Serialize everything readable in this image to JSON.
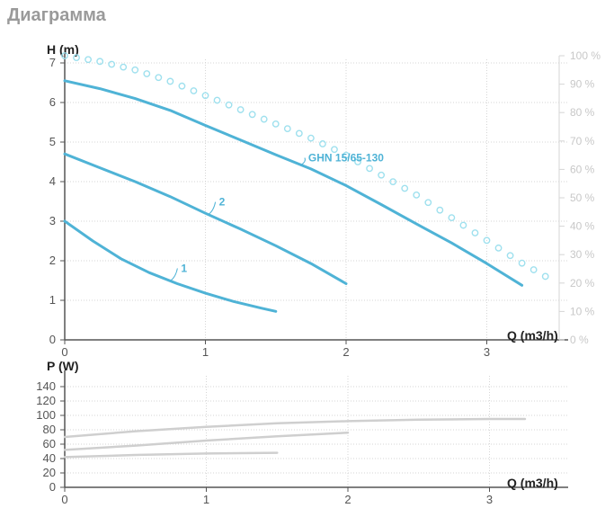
{
  "page_title": "Диаграмма",
  "chart_data": [
    {
      "type": "line",
      "panel": "head",
      "ylabel": "H (m)",
      "xlabel": "Q (m3/h)",
      "xlim": [
        0,
        3.3
      ],
      "ylim": [
        0,
        7
      ],
      "x_ticks": [
        "0",
        "1",
        "2",
        "3"
      ],
      "y_ticks": [
        "0",
        "1",
        "2",
        "3",
        "4",
        "5",
        "6",
        "7"
      ],
      "y2_ticks": [
        "0 %",
        "10 %",
        "20 %",
        "30 %",
        "40 %",
        "50 %",
        "60 %",
        "70 %",
        "80 %",
        "90 %",
        "100 %"
      ],
      "y2lim": [
        0,
        100
      ],
      "grid": "dotted",
      "series": [
        {
          "label": "1",
          "color": "#4fb3d6",
          "x": [
            0,
            0.2,
            0.4,
            0.6,
            0.8,
            1.0,
            1.2,
            1.4,
            1.5
          ],
          "y": [
            3.0,
            2.5,
            2.05,
            1.7,
            1.42,
            1.18,
            0.97,
            0.8,
            0.72
          ]
        },
        {
          "label": "2",
          "color": "#4fb3d6",
          "x": [
            0,
            0.25,
            0.5,
            0.75,
            1.0,
            1.25,
            1.5,
            1.75,
            2.0
          ],
          "y": [
            4.7,
            4.35,
            4.0,
            3.62,
            3.2,
            2.8,
            2.38,
            1.93,
            1.42
          ]
        },
        {
          "label": "GHN 15/65-130",
          "color": "#4fb3d6",
          "x": [
            0,
            0.25,
            0.5,
            0.75,
            1.0,
            1.25,
            1.5,
            1.75,
            2.0,
            2.25,
            2.5,
            2.75,
            3.0,
            3.25
          ],
          "y": [
            6.55,
            6.35,
            6.1,
            5.8,
            5.42,
            5.05,
            4.68,
            4.32,
            3.9,
            3.42,
            2.93,
            2.45,
            1.93,
            1.38
          ]
        }
      ],
      "efficiency_dots": {
        "color": "#9ee0ee",
        "x": [
          0,
          0.25,
          0.5,
          0.75,
          1.0,
          1.25,
          1.5,
          1.75,
          2.0,
          2.25,
          2.5,
          2.75,
          3.0,
          3.25,
          3.5
        ],
        "y": [
          100,
          98,
          95,
          91,
          86,
          81,
          76,
          71,
          65,
          58,
          51,
          43,
          35,
          27,
          20
        ]
      }
    },
    {
      "type": "line",
      "panel": "power",
      "ylabel": "P (W)",
      "xlabel": "Q (m3/h)",
      "xlim": [
        0,
        3.3
      ],
      "ylim": [
        0,
        150
      ],
      "x_ticks": [
        "0",
        "1",
        "2",
        "3"
      ],
      "y_ticks": [
        "0",
        "20",
        "40",
        "60",
        "80",
        "100",
        "120",
        "140"
      ],
      "grid": "dotted",
      "series": [
        {
          "label": "GHN 15/65-130",
          "color": "#cfcfcf",
          "x": [
            0,
            0.5,
            1.0,
            1.5,
            2.0,
            2.5,
            3.0,
            3.25
          ],
          "y": [
            70,
            78,
            84,
            89,
            92,
            94,
            95,
            95
          ]
        },
        {
          "label": "2",
          "color": "#cfcfcf",
          "x": [
            0,
            0.5,
            1.0,
            1.5,
            2.0
          ],
          "y": [
            52,
            58,
            65,
            71,
            76
          ]
        },
        {
          "label": "1",
          "color": "#cfcfcf",
          "x": [
            0,
            0.5,
            1.0,
            1.5
          ],
          "y": [
            42,
            45,
            47,
            48
          ]
        }
      ]
    }
  ]
}
